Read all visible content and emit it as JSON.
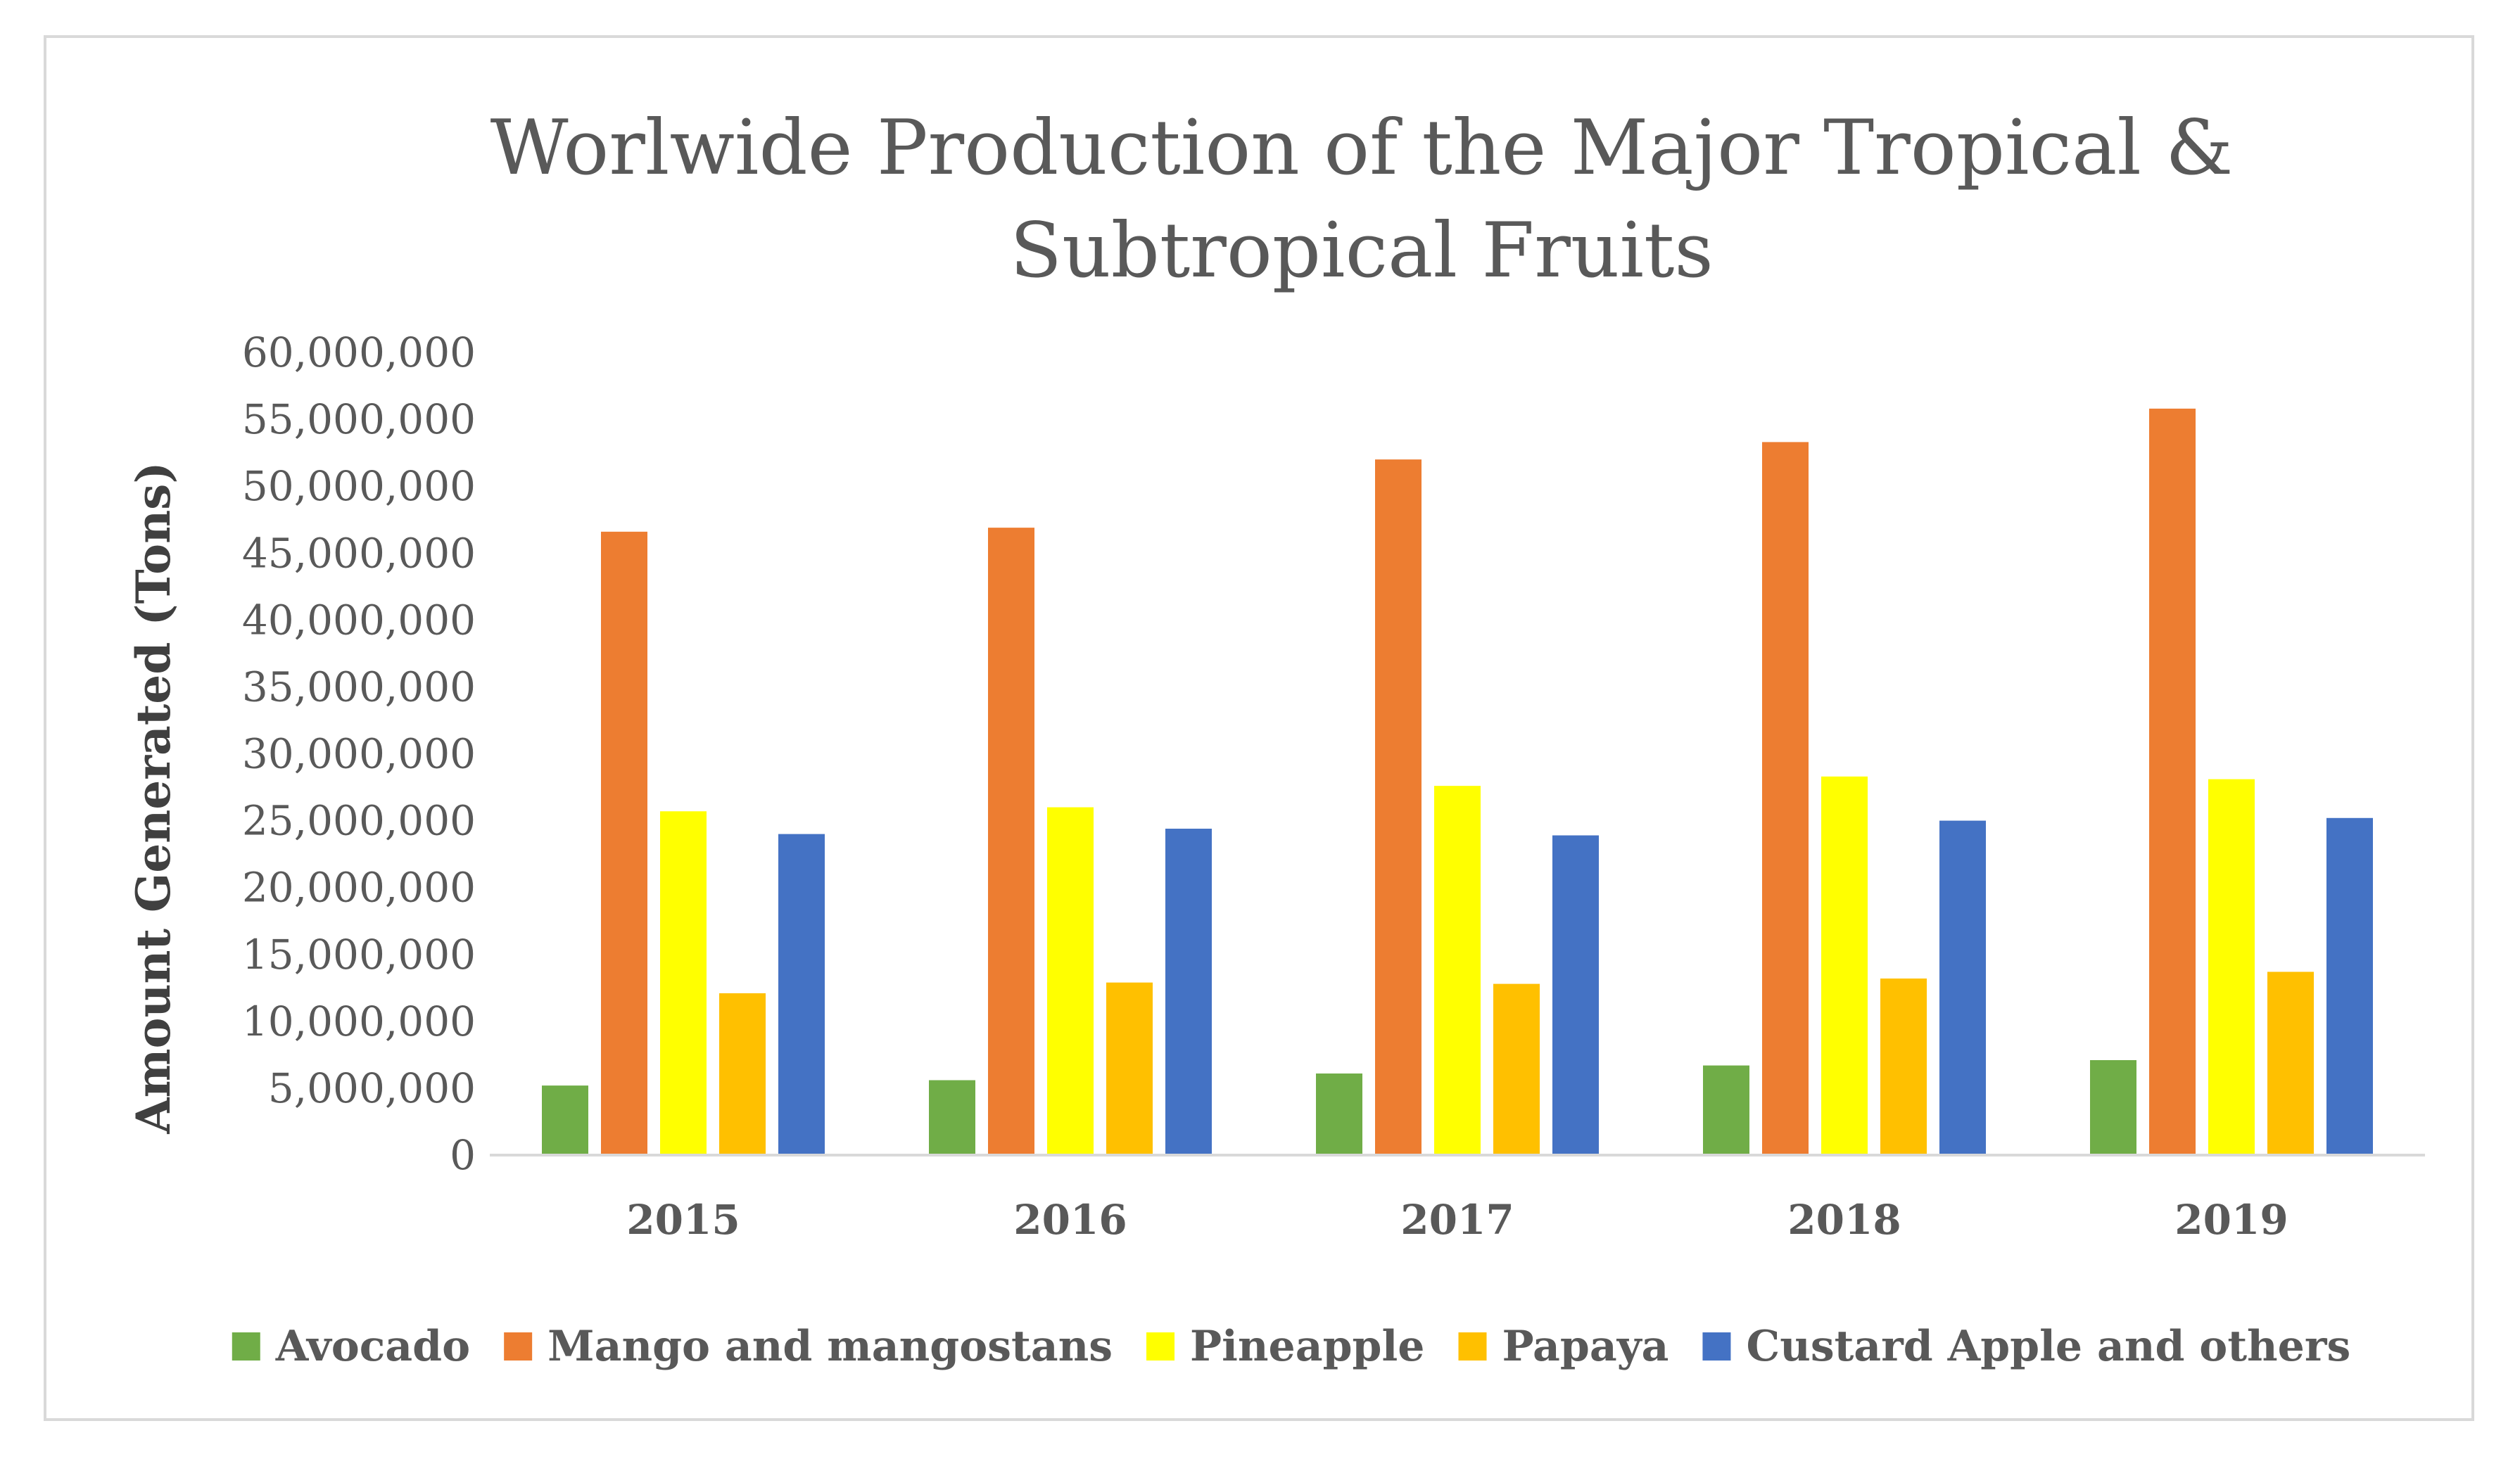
{
  "chart_data": {
    "type": "bar",
    "title_lines": [
      "Worlwide Production of the Major Tropical &",
      "Subtropical Fruits"
    ],
    "xlabel": "",
    "ylabel": "Amount Generated (Tons)",
    "ylim": [
      0,
      60000000
    ],
    "ytick_step": 5000000,
    "yticks": [
      "0",
      "5,000,000",
      "10,000,000",
      "15,000,000",
      "20,000,000",
      "25,000,000",
      "30,000,000",
      "35,000,000",
      "40,000,000",
      "45,000,000",
      "50,000,000",
      "55,000,000",
      "60,000,000"
    ],
    "categories": [
      "2015",
      "2016",
      "2017",
      "2018",
      "2019"
    ],
    "grid": false,
    "legend_position": "bottom",
    "series": [
      {
        "name": "Avocado",
        "color": "#70ad47",
        "values": [
          5200000,
          5600000,
          6100000,
          6700000,
          7100000
        ]
      },
      {
        "name": "Mango and mangostans",
        "color": "#ed7d31",
        "values": [
          46600000,
          46900000,
          52000000,
          53300000,
          55800000
        ]
      },
      {
        "name": "Pineapple",
        "color": "#ffff00",
        "values": [
          25700000,
          26000000,
          27600000,
          28300000,
          28100000
        ]
      },
      {
        "name": "Papaya",
        "color": "#ffc000",
        "values": [
          12100000,
          12900000,
          12800000,
          13200000,
          13700000
        ]
      },
      {
        "name": "Custard Apple and others",
        "color": "#4472c4",
        "values": [
          24000000,
          24400000,
          23900000,
          25000000,
          25200000
        ]
      }
    ]
  }
}
